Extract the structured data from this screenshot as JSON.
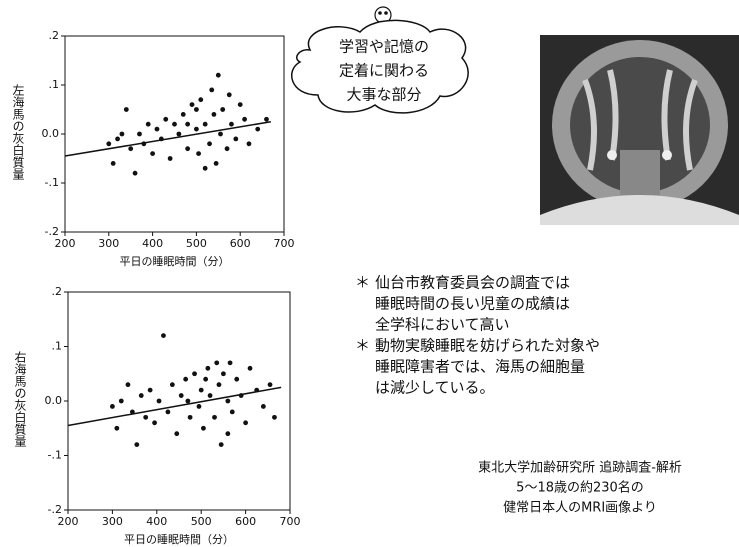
{
  "chart_data": [
    {
      "type": "scatter",
      "xlabel": "平日の睡眠時間（分）",
      "ylabel": "左海馬の灰白質量",
      "xlim": [
        200,
        700
      ],
      "xticks": [
        200,
        300,
        400,
        500,
        600,
        700
      ],
      "ylim": [
        -0.2,
        0.2
      ],
      "yticks": [
        {
          "value": 0.2,
          "label": ".2"
        },
        {
          "value": 0.1,
          "label": ".1"
        },
        {
          "value": 0,
          "label": "0.0"
        },
        {
          "value": -0.1,
          "label": "-.1"
        },
        {
          "value": -0.2,
          "label": "-.2"
        }
      ],
      "series": [
        {
          "type": "scatter",
          "color": "#111111",
          "x": [
            300,
            310,
            320,
            330,
            340,
            350,
            360,
            370,
            380,
            390,
            400,
            410,
            420,
            430,
            440,
            450,
            460,
            470,
            480,
            490,
            500,
            505,
            510,
            520,
            530,
            535,
            540,
            545,
            550,
            555,
            560,
            570,
            575,
            580,
            590,
            600,
            610,
            620,
            640,
            660,
            500,
            520,
            480
          ],
          "values": [
            -0.02,
            -0.06,
            -0.01,
            0.0,
            0.05,
            -0.03,
            -0.08,
            0.0,
            -0.02,
            0.02,
            -0.04,
            0.01,
            -0.01,
            0.03,
            -0.05,
            0.02,
            0.0,
            0.04,
            -0.03,
            0.06,
            0.01,
            -0.04,
            0.07,
            0.02,
            -0.02,
            0.09,
            0.04,
            -0.06,
            0.12,
            0.0,
            0.05,
            -0.03,
            0.08,
            0.02,
            -0.01,
            0.06,
            0.03,
            -0.02,
            0.01,
            0.03,
            0.05,
            -0.07,
            0.02
          ]
        },
        {
          "type": "line",
          "color": "#111111",
          "x": [
            200,
            670
          ],
          "values": [
            -0.045,
            0.025
          ]
        }
      ]
    },
    {
      "type": "scatter",
      "xlabel": "平日の睡眠時間（分）",
      "ylabel": "右海馬の灰白質量",
      "xlim": [
        200,
        700
      ],
      "xticks": [
        200,
        300,
        400,
        500,
        600,
        700
      ],
      "ylim": [
        -0.2,
        0.2
      ],
      "yticks": [
        {
          "value": 0.2,
          "label": ".2"
        },
        {
          "value": 0.1,
          "label": ".1"
        },
        {
          "value": 0,
          "label": "0.0"
        },
        {
          "value": -0.1,
          "label": "-.1"
        },
        {
          "value": -0.2,
          "label": "-.2"
        }
      ],
      "series": [
        {
          "type": "scatter",
          "color": "#111111",
          "x": [
            300,
            310,
            320,
            335,
            345,
            355,
            365,
            375,
            385,
            395,
            405,
            415,
            425,
            435,
            445,
            455,
            465,
            475,
            485,
            495,
            500,
            505,
            515,
            520,
            530,
            535,
            540,
            545,
            550,
            560,
            565,
            570,
            580,
            590,
            600,
            610,
            625,
            640,
            655,
            665,
            510,
            470,
            560
          ],
          "values": [
            -0.01,
            -0.05,
            0.0,
            0.03,
            -0.02,
            -0.08,
            0.01,
            -0.03,
            0.02,
            -0.04,
            0.0,
            0.12,
            -0.02,
            0.03,
            -0.06,
            0.01,
            0.04,
            -0.03,
            0.05,
            -0.01,
            0.02,
            -0.05,
            0.06,
            0.01,
            -0.03,
            0.07,
            0.03,
            -0.08,
            0.05,
            0.0,
            0.07,
            -0.02,
            0.04,
            0.01,
            -0.04,
            0.06,
            0.02,
            -0.01,
            0.03,
            -0.03,
            0.04,
            0.0,
            -0.06
          ]
        },
        {
          "type": "line",
          "color": "#111111",
          "x": [
            200,
            680
          ],
          "values": [
            -0.045,
            0.025
          ]
        }
      ]
    }
  ],
  "bubble": [
    "学習や記憶の",
    "定着に関わる",
    "大事な部分"
  ],
  "notes": [
    {
      "marker": "＊",
      "lines": [
        "仙台市教育委員会の調査では",
        "睡眠時間の長い児童の成績は",
        "全学科において高い"
      ]
    },
    {
      "marker": "＊",
      "lines": [
        "動物実験睡眠を妨げられた対象や",
        "睡眠障害者では、海馬の細胞量",
        "は減少している。"
      ]
    }
  ],
  "source": [
    "東北大学加齢研究所 追跡調査-解析",
    "5～18歳の約230名の",
    "健常日本人のMRI画像より"
  ]
}
